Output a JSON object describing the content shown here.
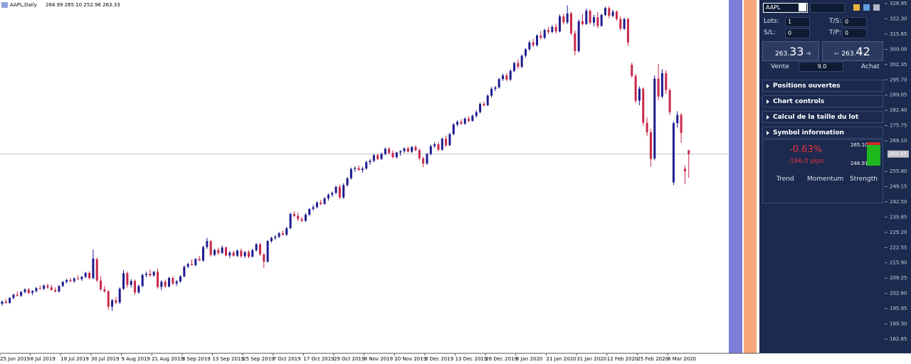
{
  "header": {
    "symbol": "AAPL,Daily",
    "ohlc": "264.99 265.10 252.96 263.33"
  },
  "chart_data": {
    "type": "candlestick",
    "up_color": "#1c1c8f",
    "down_color": "#c8284a",
    "ylim": [
      176.45,
      330.5
    ],
    "yticks": [
      328.95,
      {
        "value": 322.3,
        "label": "322.30"
      },
      315.65,
      {
        "value": 309,
        "label": "309.00"
      },
      302.35,
      {
        "value": 295.7,
        "label": "295.70"
      },
      289.05,
      {
        "value": 282.4,
        "label": "282.40"
      },
      275.75,
      {
        "value": 269.1,
        "label": "269.10"
      },
      {
        "value": 255.8,
        "label": "255.80"
      },
      249.15,
      {
        "value": 242.5,
        "label": "242.50"
      },
      235.85,
      {
        "value": 229.2,
        "label": "229.20"
      },
      222.55,
      {
        "value": 215.9,
        "label": "215.90"
      },
      209.25,
      {
        "value": 202.6,
        "label": "202.60"
      },
      195.95,
      {
        "value": 189.3,
        "label": "189.30"
      },
      182.65
    ],
    "current_price": 263.33,
    "categories": [
      "25 Jun 2019",
      null,
      null,
      null,
      null,
      null,
      null,
      null,
      "8 Jul 2019",
      null,
      null,
      null,
      null,
      null,
      null,
      null,
      "18 Jul 2019",
      null,
      null,
      null,
      null,
      null,
      null,
      null,
      "30 Jul 2019",
      null,
      null,
      null,
      null,
      null,
      null,
      null,
      "9 Aug 2019",
      null,
      null,
      null,
      null,
      null,
      null,
      null,
      "21 Aug 2019",
      null,
      null,
      null,
      null,
      null,
      null,
      null,
      "3 Sep 2019",
      null,
      null,
      null,
      null,
      null,
      null,
      null,
      "13 Sep 2019",
      null,
      null,
      null,
      null,
      null,
      null,
      null,
      "25 Sep 2019",
      null,
      null,
      null,
      null,
      null,
      null,
      null,
      "7 Oct 2019",
      null,
      null,
      null,
      null,
      null,
      null,
      null,
      "17 Oct 2019",
      null,
      null,
      null,
      null,
      null,
      null,
      null,
      "29 Oct 2019",
      null,
      null,
      null,
      null,
      null,
      null,
      null,
      "8 Nov 2019",
      null,
      null,
      null,
      null,
      null,
      null,
      null,
      "20 Nov 2019",
      null,
      null,
      null,
      null,
      null,
      null,
      null,
      "3 Dec 2019",
      null,
      null,
      null,
      null,
      null,
      null,
      null,
      "13 Dec 2019",
      null,
      null,
      null,
      null,
      null,
      null,
      null,
      "26 Dec 2019",
      null,
      null,
      null,
      null,
      null,
      null,
      null,
      "8 Jan 2020",
      null,
      null,
      null,
      null,
      null,
      null,
      null,
      "21 Jan 2020",
      null,
      null,
      null,
      null,
      null,
      null,
      null,
      "31 Jan 2020",
      null,
      null,
      null,
      null,
      null,
      null,
      null,
      "12 Feb 2020",
      null,
      null,
      null,
      null,
      null,
      null,
      null,
      "25 Feb 2020",
      null,
      null,
      null,
      null,
      null,
      null,
      null,
      "6 Mar 2020",
      null,
      null,
      null,
      null,
      null
    ],
    "candles": [
      [
        198.0,
        199.5,
        197.2,
        199.0
      ],
      [
        199.0,
        200.2,
        198.1,
        198.4
      ],
      [
        198.4,
        201.0,
        198.0,
        200.6
      ],
      [
        200.6,
        202.5,
        200.0,
        202.0
      ],
      [
        202.0,
        203.4,
        201.2,
        201.6
      ],
      [
        201.6,
        203.6,
        201.0,
        203.2
      ],
      [
        203.2,
        204.8,
        202.6,
        204.3
      ],
      [
        204.3,
        204.9,
        202.2,
        202.8
      ],
      [
        202.8,
        204.0,
        201.8,
        203.6
      ],
      [
        203.6,
        205.4,
        203.0,
        204.9
      ],
      [
        204.9,
        206.1,
        204.2,
        204.6
      ],
      [
        204.6,
        206.5,
        204.0,
        206.0
      ],
      [
        206.0,
        206.8,
        204.6,
        205.2
      ],
      [
        205.2,
        206.4,
        203.8,
        204.1
      ],
      [
        204.1,
        205.2,
        203.0,
        203.4
      ],
      [
        203.4,
        206.2,
        203.0,
        205.8
      ],
      [
        205.8,
        208.0,
        205.4,
        207.6
      ],
      [
        207.6,
        209.0,
        206.9,
        208.4
      ],
      [
        208.4,
        209.3,
        207.5,
        207.9
      ],
      [
        207.9,
        209.6,
        207.2,
        209.1
      ],
      [
        209.1,
        210.4,
        208.5,
        208.8
      ],
      [
        208.8,
        210.2,
        208.0,
        209.8
      ],
      [
        209.8,
        212.0,
        209.2,
        211.5
      ],
      [
        211.5,
        212.3,
        208.6,
        209.2
      ],
      [
        209.2,
        221.6,
        208.8,
        217.8
      ],
      [
        217.5,
        218.2,
        207.5,
        208.2
      ],
      [
        208.2,
        210.0,
        203.6,
        204.4
      ],
      [
        204.4,
        205.8,
        202.8,
        203.5
      ],
      [
        203.5,
        204.0,
        195.4,
        196.8
      ],
      [
        196.8,
        200.2,
        195.0,
        199.6
      ],
      [
        199.6,
        201.0,
        197.8,
        198.6
      ],
      [
        198.6,
        205.2,
        198.0,
        204.6
      ],
      [
        204.6,
        212.8,
        204.0,
        211.4
      ],
      [
        211.4,
        212.2,
        205.0,
        206.3
      ],
      [
        206.3,
        208.8,
        205.1,
        208.0
      ],
      [
        208.0,
        208.6,
        202.0,
        203.0
      ],
      [
        203.0,
        206.4,
        202.4,
        205.8
      ],
      [
        205.8,
        211.2,
        205.3,
        210.6
      ],
      [
        210.6,
        212.0,
        209.6,
        211.2
      ],
      [
        211.2,
        213.0,
        209.8,
        210.4
      ],
      [
        210.4,
        212.4,
        209.8,
        212.0
      ],
      [
        212.0,
        213.4,
        204.6,
        205.4
      ],
      [
        205.4,
        208.4,
        204.0,
        207.7
      ],
      [
        207.7,
        208.6,
        205.0,
        205.6
      ],
      [
        205.6,
        209.8,
        205.2,
        209.3
      ],
      [
        209.3,
        210.0,
        206.2,
        206.9
      ],
      [
        206.9,
        208.4,
        205.8,
        207.8
      ],
      [
        207.8,
        210.5,
        207.2,
        210.0
      ],
      [
        210.0,
        214.8,
        209.6,
        214.2
      ],
      [
        214.2,
        215.9,
        213.6,
        215.4
      ],
      [
        215.4,
        217.4,
        214.8,
        214.9
      ],
      [
        214.9,
        218.0,
        214.4,
        217.6
      ],
      [
        217.6,
        219.0,
        216.8,
        216.9
      ],
      [
        216.9,
        223.4,
        216.4,
        222.8
      ],
      [
        222.8,
        226.8,
        222.0,
        225.4
      ],
      [
        225.4,
        226.0,
        218.6,
        219.4
      ],
      [
        219.4,
        222.0,
        218.8,
        221.5
      ],
      [
        221.5,
        222.6,
        219.4,
        220.2
      ],
      [
        220.2,
        223.4,
        219.8,
        222.6
      ],
      [
        222.6,
        223.0,
        218.8,
        219.1
      ],
      [
        219.1,
        221.0,
        218.0,
        220.4
      ],
      [
        220.4,
        221.2,
        218.6,
        219.0
      ],
      [
        219.0,
        221.8,
        218.4,
        221.2
      ],
      [
        221.2,
        222.2,
        218.2,
        218.8
      ],
      [
        218.8,
        221.0,
        218.0,
        220.6
      ],
      [
        220.6,
        221.4,
        218.0,
        218.6
      ],
      [
        218.6,
        222.0,
        218.2,
        221.4
      ],
      [
        221.4,
        224.6,
        220.8,
        224.0
      ],
      [
        224.0,
        224.6,
        219.0,
        219.6
      ],
      [
        219.6,
        220.2,
        213.6,
        216.4
      ],
      [
        216.4,
        225.8,
        216.0,
        225.4
      ],
      [
        225.4,
        227.2,
        224.6,
        226.8
      ],
      [
        226.8,
        228.0,
        225.8,
        227.3
      ],
      [
        227.3,
        229.4,
        226.6,
        228.8
      ],
      [
        228.8,
        230.0,
        227.8,
        228.2
      ],
      [
        228.2,
        231.6,
        227.6,
        231.0
      ],
      [
        231.0,
        237.8,
        230.6,
        237.2
      ],
      [
        237.2,
        238.4,
        235.8,
        236.4
      ],
      [
        236.4,
        237.8,
        234.2,
        235.0
      ],
      [
        235.0,
        236.0,
        233.6,
        234.2
      ],
      [
        234.2,
        237.6,
        233.8,
        236.9
      ],
      [
        236.9,
        239.8,
        236.4,
        239.4
      ],
      [
        239.4,
        241.2,
        238.6,
        240.2
      ],
      [
        240.2,
        242.8,
        239.6,
        242.2
      ],
      [
        242.2,
        243.4,
        241.0,
        241.6
      ],
      [
        241.6,
        244.6,
        241.2,
        244.0
      ],
      [
        244.0,
        246.2,
        243.0,
        245.6
      ],
      [
        245.6,
        247.0,
        244.6,
        246.4
      ],
      [
        246.4,
        249.6,
        245.8,
        249.0
      ],
      [
        249.0,
        250.0,
        243.6,
        244.4
      ],
      [
        244.4,
        250.6,
        243.8,
        249.8
      ],
      [
        249.8,
        253.2,
        249.2,
        252.8
      ],
      [
        252.8,
        257.4,
        252.2,
        256.8
      ],
      [
        256.8,
        258.0,
        255.6,
        257.2
      ],
      [
        257.2,
        258.4,
        256.0,
        256.4
      ],
      [
        256.4,
        257.8,
        255.2,
        257.0
      ],
      [
        257.0,
        260.4,
        256.6,
        259.8
      ],
      [
        259.8,
        261.2,
        258.6,
        260.4
      ],
      [
        260.4,
        263.4,
        259.8,
        262.8
      ],
      [
        262.8,
        263.6,
        260.6,
        261.2
      ],
      [
        261.2,
        264.0,
        260.8,
        263.4
      ],
      [
        263.4,
        266.2,
        262.8,
        265.6
      ],
      [
        265.6,
        266.4,
        263.2,
        263.8
      ],
      [
        263.8,
        265.0,
        261.4,
        262.0
      ],
      [
        262.0,
        264.4,
        261.4,
        264.0
      ],
      [
        264.0,
        265.0,
        262.6,
        264.6
      ],
      [
        264.6,
        266.2,
        263.8,
        265.8
      ],
      [
        265.8,
        266.6,
        264.0,
        264.4
      ],
      [
        264.4,
        266.8,
        263.8,
        266.4
      ],
      [
        266.4,
        267.2,
        264.6,
        265.0
      ],
      [
        265.0,
        265.8,
        260.6,
        261.4
      ],
      [
        261.4,
        262.2,
        257.6,
        259.2
      ],
      [
        259.2,
        263.8,
        258.6,
        263.4
      ],
      [
        263.4,
        267.4,
        262.8,
        266.8
      ],
      [
        266.8,
        268.6,
        266.0,
        267.6
      ],
      [
        267.6,
        268.4,
        264.6,
        265.2
      ],
      [
        265.2,
        270.6,
        264.8,
        270.0
      ],
      [
        270.0,
        271.4,
        266.4,
        267.2
      ],
      [
        267.2,
        272.6,
        266.8,
        272.0
      ],
      [
        272.0,
        276.8,
        271.6,
        276.2
      ],
      [
        276.2,
        278.0,
        275.4,
        277.4
      ],
      [
        277.4,
        278.6,
        276.0,
        276.6
      ],
      [
        276.6,
        279.4,
        276.0,
        278.8
      ],
      [
        278.8,
        279.8,
        277.2,
        277.8
      ],
      [
        277.8,
        280.6,
        277.4,
        280.0
      ],
      [
        280.0,
        282.4,
        279.2,
        281.6
      ],
      [
        281.6,
        285.8,
        281.0,
        285.2
      ],
      [
        285.2,
        286.2,
        284.0,
        284.6
      ],
      [
        284.6,
        289.4,
        284.2,
        288.8
      ],
      [
        288.8,
        292.6,
        288.0,
        291.8
      ],
      [
        291.8,
        293.0,
        290.8,
        292.4
      ],
      [
        292.4,
        296.6,
        291.8,
        296.0
      ],
      [
        296.0,
        298.4,
        295.2,
        297.6
      ],
      [
        297.6,
        298.6,
        295.0,
        295.8
      ],
      [
        295.8,
        300.4,
        295.2,
        299.6
      ],
      [
        299.6,
        303.6,
        299.0,
        303.0
      ],
      [
        303.0,
        304.6,
        300.4,
        301.4
      ],
      [
        301.4,
        306.8,
        300.8,
        306.2
      ],
      [
        306.2,
        309.6,
        305.4,
        309.0
      ],
      [
        309.0,
        312.8,
        308.4,
        312.0
      ],
      [
        312.0,
        313.6,
        310.0,
        310.8
      ],
      [
        310.8,
        315.6,
        310.2,
        315.0
      ],
      [
        315.0,
        317.0,
        313.2,
        314.0
      ],
      [
        314.0,
        318.0,
        313.4,
        317.4
      ],
      [
        317.4,
        318.8,
        315.6,
        316.6
      ],
      [
        316.6,
        319.6,
        316.0,
        318.8
      ],
      [
        318.8,
        320.2,
        315.8,
        316.8
      ],
      [
        316.8,
        324.2,
        316.4,
        323.4
      ],
      [
        323.4,
        324.6,
        319.8,
        320.8
      ],
      [
        320.8,
        328.2,
        320.0,
        324.6
      ],
      [
        324.6,
        325.4,
        315.2,
        316.0
      ],
      [
        316.0,
        317.2,
        306.4,
        308.2
      ],
      [
        308.2,
        322.0,
        307.6,
        321.2
      ],
      [
        321.2,
        324.4,
        319.4,
        320.0
      ],
      [
        320.0,
        326.8,
        319.6,
        325.8
      ],
      [
        325.8,
        326.4,
        319.8,
        320.6
      ],
      [
        320.6,
        324.0,
        319.0,
        323.0
      ],
      [
        323.0,
        325.2,
        318.2,
        319.2
      ],
      [
        319.2,
        324.6,
        318.8,
        324.0
      ],
      [
        324.0,
        327.6,
        323.4,
        327.0
      ],
      [
        327.0,
        327.8,
        322.6,
        323.6
      ],
      [
        323.6,
        326.2,
        323.0,
        325.4
      ],
      [
        325.4,
        326.0,
        321.4,
        322.2
      ],
      [
        322.2,
        323.4,
        317.0,
        318.0
      ],
      [
        318.0,
        322.8,
        317.4,
        322.2
      ],
      [
        322.2,
        322.8,
        310.4,
        312.0
      ],
      [
        302.2,
        303.2,
        296.6,
        297.4
      ],
      [
        297.4,
        298.4,
        285.6,
        286.6
      ],
      [
        286.6,
        292.8,
        284.6,
        291.8
      ],
      [
        291.8,
        292.4,
        275.6,
        277.0
      ],
      [
        277.0,
        279.2,
        271.2,
        272.8
      ],
      [
        272.8,
        274.4,
        257.8,
        261.2
      ],
      [
        261.4,
        297.6,
        260.6,
        296.2
      ],
      [
        296.2,
        302.6,
        286.8,
        288.4
      ],
      [
        288.4,
        300.4,
        287.6,
        298.6
      ],
      [
        298.6,
        299.8,
        289.4,
        291.2
      ],
      [
        291.2,
        292.0,
        280.4,
        281.6
      ],
      [
        251.0,
        277.6,
        249.8,
        276.8
      ],
      [
        276.8,
        282.0,
        274.8,
        280.4
      ],
      [
        280.4,
        281.2,
        268.2,
        272.6
      ],
      [
        257.0,
        258.4,
        250.2,
        255.8
      ],
      [
        264.99,
        265.1,
        252.96,
        263.33
      ]
    ]
  },
  "panel": {
    "symbol": "AAPL",
    "lots_label": "Lots:",
    "lots": "1",
    "ts_label": "T/S:",
    "ts": "0",
    "sl_label": "S/L:",
    "sl": "0",
    "tp_label": "T/P:",
    "tp": "0",
    "sell": {
      "small": "263.",
      "big": "33",
      "label": "Vente"
    },
    "buy": {
      "small": "263.",
      "big": "42",
      "label": "Achat"
    },
    "spread": "9.0",
    "sections": [
      "Positions ouvertes",
      "Chart controls",
      "Calcul de la taille du lot",
      "Symbol information"
    ],
    "change_pct": "-0.63%",
    "change_pips": "-166.0 pips",
    "range_high": "265.10",
    "range_low": "248.91",
    "indicators": [
      "Trend",
      "Momentum",
      "Strength"
    ]
  }
}
